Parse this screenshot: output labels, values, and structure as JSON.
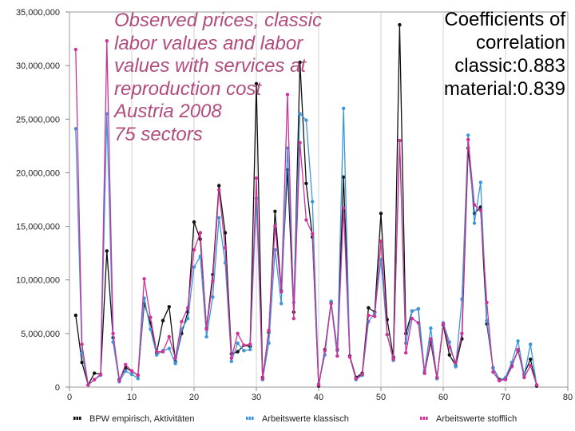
{
  "overlay": {
    "title_lines": [
      "Observed prices, classic",
      "labor values and labor",
      "values with services at",
      "reproduction cost",
      "Austria 2008",
      "75 sectors"
    ],
    "coef_lines": [
      "Coefficients of",
      "correlation",
      "classic:0.883",
      "material:0.839"
    ]
  },
  "chart_data": {
    "type": "line",
    "title": "",
    "xlabel": "",
    "ylabel": "",
    "xlim": [
      0,
      80
    ],
    "ylim": [
      0,
      35000000
    ],
    "x_ticks": [
      0,
      10,
      20,
      30,
      40,
      50,
      60,
      70,
      80
    ],
    "y_ticks": [
      0,
      5000000,
      10000000,
      15000000,
      20000000,
      25000000,
      30000000,
      35000000
    ],
    "y_tick_labels": [
      "0",
      "5,000,000",
      "10,000,000",
      "15,000,000",
      "20,000,000",
      "25,000,000",
      "30,000,000",
      "35,000,000"
    ],
    "grid": "vertical",
    "legend_position": "bottom",
    "x": [
      1,
      2,
      3,
      4,
      5,
      6,
      7,
      8,
      9,
      10,
      11,
      12,
      13,
      14,
      15,
      16,
      17,
      18,
      19,
      20,
      21,
      22,
      23,
      24,
      25,
      26,
      27,
      28,
      29,
      30,
      31,
      32,
      33,
      34,
      35,
      36,
      37,
      38,
      39,
      40,
      41,
      42,
      43,
      44,
      45,
      46,
      47,
      48,
      49,
      50,
      51,
      52,
      53,
      54,
      55,
      56,
      57,
      58,
      59,
      60,
      61,
      62,
      63,
      64,
      65,
      66,
      67,
      68,
      69,
      70,
      71,
      72,
      73,
      74,
      75
    ],
    "series": [
      {
        "name": "BPW empirisch, Aktivitäten",
        "color": "#111111",
        "values": [
          6700000,
          2300000,
          200000,
          1300000,
          1200000,
          12700000,
          4600000,
          700000,
          1800000,
          1500000,
          1100000,
          7800000,
          6000000,
          3200000,
          6200000,
          7500000,
          2400000,
          5000000,
          7000000,
          15400000,
          13800000,
          5500000,
          10500000,
          18800000,
          14400000,
          3100000,
          3300000,
          3900000,
          3800000,
          28300000,
          900000,
          5100000,
          16400000,
          9000000,
          20300000,
          7000000,
          30300000,
          19000000,
          14000000,
          100000,
          3500000,
          7900000,
          3500000,
          19600000,
          2900000,
          900000,
          1300000,
          7400000,
          7000000,
          16200000,
          6300000,
          2800000,
          33800000,
          5000000,
          7100000,
          7300000,
          1300000,
          4200000,
          800000,
          5800000,
          3000000,
          2000000,
          4500000,
          22300000,
          16200000,
          16800000,
          5900000,
          1800000,
          700000,
          800000,
          2000000,
          3400000,
          1200000,
          2600000,
          100000
        ]
      },
      {
        "name": "Arbeitswerte klassisch",
        "color": "#3c96dc",
        "values": [
          24100000,
          3200000,
          200000,
          700000,
          1100000,
          25500000,
          4200000,
          500000,
          1500000,
          1200000,
          800000,
          8300000,
          5400000,
          3000000,
          3400000,
          3600000,
          2200000,
          5400000,
          6400000,
          11200000,
          12200000,
          4700000,
          8400000,
          15800000,
          11600000,
          2400000,
          4100000,
          3400000,
          3500000,
          17600000,
          700000,
          4100000,
          12800000,
          7800000,
          22300000,
          7900000,
          25500000,
          24900000,
          17300000,
          300000,
          3000000,
          8000000,
          3400000,
          26000000,
          2800000,
          700000,
          1100000,
          6100000,
          6900000,
          11900000,
          4900000,
          2500000,
          23000000,
          4100000,
          7100000,
          7300000,
          1500000,
          5500000,
          800000,
          6000000,
          4200000,
          1900000,
          8200000,
          23500000,
          15300000,
          19100000,
          6200000,
          1800000,
          600000,
          900000,
          2300000,
          4300000,
          1100000,
          4000000,
          200000
        ]
      },
      {
        "name": "Arbeitswerte stofflich",
        "color": "#cc3399",
        "values": [
          31500000,
          4000000,
          200000,
          700000,
          1200000,
          32300000,
          5000000,
          600000,
          2100000,
          1500000,
          1100000,
          10100000,
          6500000,
          3300000,
          3300000,
          4700000,
          2700000,
          6100000,
          7400000,
          12800000,
          14400000,
          5400000,
          9900000,
          18400000,
          13000000,
          2700000,
          5000000,
          3900000,
          4000000,
          19500000,
          800000,
          5300000,
          15000000,
          8900000,
          27300000,
          6400000,
          22800000,
          15600000,
          14300000,
          200000,
          3400000,
          7800000,
          2900000,
          16700000,
          2800000,
          800000,
          1200000,
          6700000,
          6600000,
          13600000,
          4900000,
          2600000,
          23000000,
          3200000,
          6400000,
          6000000,
          1300000,
          4500000,
          900000,
          5900000,
          3700000,
          2300000,
          5000000,
          23100000,
          17000000,
          16500000,
          7900000,
          1400000,
          600000,
          700000,
          1900000,
          3500000,
          900000,
          2000000,
          200000
        ]
      }
    ]
  }
}
